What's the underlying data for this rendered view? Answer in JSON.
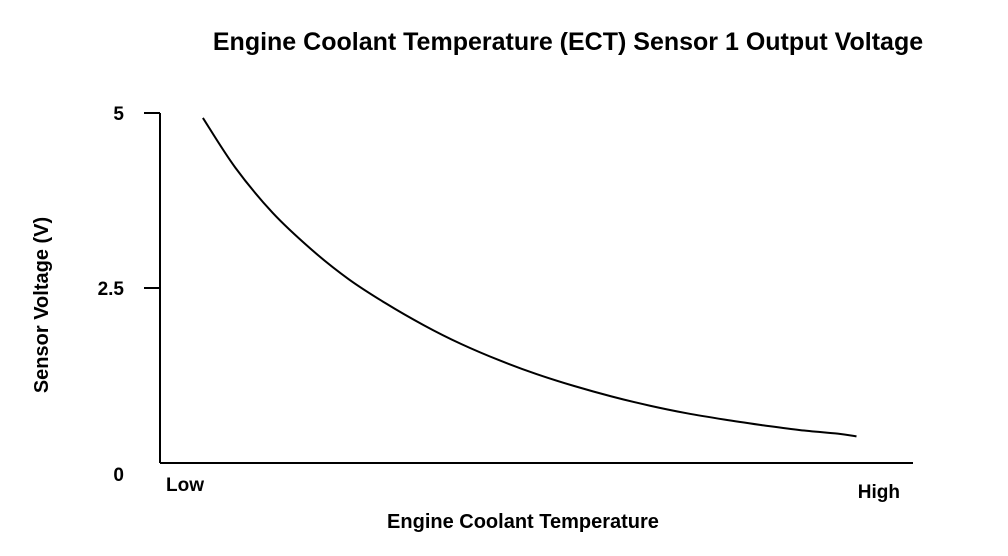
{
  "chart_data": {
    "type": "line",
    "title": "Engine Coolant Temperature (ECT) Sensor 1 Output Voltage",
    "xlabel": "Engine Coolant Temperature",
    "ylabel": "Sensor Voltage (V)",
    "x_tick_labels": {
      "low": "Low",
      "high": "High"
    },
    "y_ticks": [
      {
        "value": 5,
        "label": "5"
      },
      {
        "value": 2.5,
        "label": "2.5"
      },
      {
        "value": 0,
        "label": "0"
      }
    ],
    "ylim": [
      0,
      5
    ],
    "xlim": [
      0,
      1
    ],
    "grid": false,
    "series": [
      {
        "color": "#000000",
        "points": [
          {
            "x": 0.057,
            "y": 4.93
          },
          {
            "x": 0.1,
            "y": 4.22
          },
          {
            "x": 0.15,
            "y": 3.57
          },
          {
            "x": 0.2,
            "y": 3.06
          },
          {
            "x": 0.25,
            "y": 2.63
          },
          {
            "x": 0.3,
            "y": 2.28
          },
          {
            "x": 0.35,
            "y": 1.97
          },
          {
            "x": 0.4,
            "y": 1.7
          },
          {
            "x": 0.45,
            "y": 1.47
          },
          {
            "x": 0.5,
            "y": 1.27
          },
          {
            "x": 0.55,
            "y": 1.1
          },
          {
            "x": 0.6,
            "y": 0.95
          },
          {
            "x": 0.65,
            "y": 0.82
          },
          {
            "x": 0.7,
            "y": 0.71
          },
          {
            "x": 0.75,
            "y": 0.62
          },
          {
            "x": 0.8,
            "y": 0.54
          },
          {
            "x": 0.85,
            "y": 0.47
          },
          {
            "x": 0.9,
            "y": 0.42
          },
          {
            "x": 0.925,
            "y": 0.38
          }
        ]
      }
    ]
  }
}
